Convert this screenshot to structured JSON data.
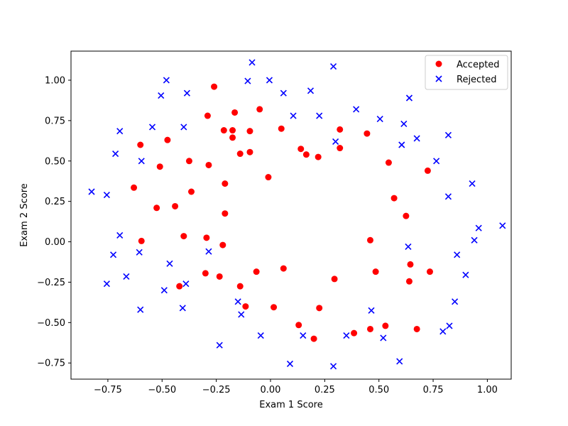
{
  "chart_data": {
    "type": "scatter",
    "xlabel": "Exam 1 Score",
    "ylabel": "Exam 2 Score",
    "xlim": [
      -0.92,
      1.11
    ],
    "ylim": [
      -0.85,
      1.18
    ],
    "xticks": [
      -0.75,
      -0.5,
      -0.25,
      0.0,
      0.25,
      0.5,
      0.75,
      1.0
    ],
    "xtick_labels": [
      "−0.75",
      "−0.50",
      "−0.25",
      "0.00",
      "0.25",
      "0.50",
      "0.75",
      "1.00"
    ],
    "yticks": [
      -0.75,
      -0.5,
      -0.25,
      0.0,
      0.25,
      0.5,
      0.75,
      1.0
    ],
    "ytick_labels": [
      "−0.75",
      "−0.50",
      "−0.25",
      "0.00",
      "0.25",
      "0.50",
      "0.75",
      "1.00"
    ],
    "grid": false,
    "legend_position": "upper-right",
    "series": [
      {
        "name": "Accepted",
        "marker": "circle",
        "color": "#ff0000",
        "points": [
          [
            -0.26,
            0.96
          ],
          [
            -0.29,
            0.78
          ],
          [
            -0.05,
            0.82
          ],
          [
            -0.165,
            0.8
          ],
          [
            -0.215,
            0.69
          ],
          [
            -0.175,
            0.69
          ],
          [
            -0.095,
            0.685
          ],
          [
            -0.175,
            0.645
          ],
          [
            -0.475,
            0.63
          ],
          [
            -0.6,
            0.6
          ],
          [
            -0.14,
            0.545
          ],
          [
            -0.095,
            0.555
          ],
          [
            -0.51,
            0.465
          ],
          [
            -0.375,
            0.5
          ],
          [
            -0.285,
            0.475
          ],
          [
            -0.21,
            0.36
          ],
          [
            -0.63,
            0.335
          ],
          [
            -0.365,
            0.31
          ],
          [
            -0.525,
            0.21
          ],
          [
            -0.44,
            0.22
          ],
          [
            -0.01,
            0.4
          ],
          [
            -0.21,
            0.175
          ],
          [
            -0.595,
            0.005
          ],
          [
            -0.4,
            0.035
          ],
          [
            -0.295,
            0.025
          ],
          [
            -0.22,
            -0.02
          ],
          [
            0.05,
            0.7
          ],
          [
            0.32,
            0.695
          ],
          [
            0.445,
            0.67
          ],
          [
            0.14,
            0.575
          ],
          [
            0.165,
            0.54
          ],
          [
            0.22,
            0.525
          ],
          [
            0.32,
            0.58
          ],
          [
            0.545,
            0.49
          ],
          [
            0.725,
            0.44
          ],
          [
            0.57,
            0.27
          ],
          [
            0.625,
            0.16
          ],
          [
            0.46,
            0.01
          ],
          [
            0.06,
            -0.165
          ],
          [
            -0.065,
            -0.185
          ],
          [
            -0.3,
            -0.195
          ],
          [
            -0.235,
            -0.215
          ],
          [
            -0.42,
            -0.275
          ],
          [
            -0.14,
            -0.275
          ],
          [
            -0.115,
            -0.4
          ],
          [
            0.015,
            -0.405
          ],
          [
            0.225,
            -0.41
          ],
          [
            0.295,
            -0.23
          ],
          [
            0.485,
            -0.185
          ],
          [
            0.645,
            -0.14
          ],
          [
            0.735,
            -0.185
          ],
          [
            0.64,
            -0.245
          ],
          [
            0.13,
            -0.515
          ],
          [
            0.2,
            -0.6
          ],
          [
            0.385,
            -0.565
          ],
          [
            0.46,
            -0.54
          ],
          [
            0.53,
            -0.52
          ],
          [
            0.675,
            -0.54
          ]
        ]
      },
      {
        "name": "Rejected",
        "marker": "x",
        "color": "#0000ff",
        "points": [
          [
            -0.085,
            1.11
          ],
          [
            0.29,
            1.085
          ],
          [
            -0.48,
            1.0
          ],
          [
            -0.105,
            0.995
          ],
          [
            -0.005,
            1.0
          ],
          [
            -0.385,
            0.92
          ],
          [
            -0.505,
            0.905
          ],
          [
            0.06,
            0.92
          ],
          [
            0.185,
            0.935
          ],
          [
            0.64,
            0.89
          ],
          [
            0.395,
            0.82
          ],
          [
            0.105,
            0.78
          ],
          [
            0.225,
            0.78
          ],
          [
            0.505,
            0.76
          ],
          [
            0.615,
            0.73
          ],
          [
            -0.695,
            0.685
          ],
          [
            -0.545,
            0.71
          ],
          [
            -0.4,
            0.71
          ],
          [
            0.82,
            0.66
          ],
          [
            0.675,
            0.64
          ],
          [
            0.605,
            0.6
          ],
          [
            0.3,
            0.62
          ],
          [
            -0.715,
            0.545
          ],
          [
            -0.595,
            0.5
          ],
          [
            0.765,
            0.5
          ],
          [
            0.93,
            0.36
          ],
          [
            -0.825,
            0.31
          ],
          [
            -0.755,
            0.29
          ],
          [
            0.82,
            0.28
          ],
          [
            -0.695,
            0.04
          ],
          [
            -0.605,
            -0.065
          ],
          [
            -0.725,
            -0.08
          ],
          [
            -0.285,
            -0.06
          ],
          [
            0.635,
            -0.03
          ],
          [
            0.94,
            0.01
          ],
          [
            0.96,
            0.085
          ],
          [
            1.07,
            0.1
          ],
          [
            0.86,
            -0.08
          ],
          [
            -0.665,
            -0.215
          ],
          [
            -0.755,
            -0.26
          ],
          [
            -0.465,
            -0.135
          ],
          [
            -0.39,
            -0.26
          ],
          [
            -0.49,
            -0.3
          ],
          [
            0.9,
            -0.205
          ],
          [
            -0.6,
            -0.42
          ],
          [
            -0.405,
            -0.41
          ],
          [
            -0.15,
            -0.37
          ],
          [
            -0.135,
            -0.45
          ],
          [
            0.465,
            -0.425
          ],
          [
            0.85,
            -0.37
          ],
          [
            0.825,
            -0.52
          ],
          [
            0.795,
            -0.555
          ],
          [
            -0.045,
            -0.58
          ],
          [
            0.15,
            -0.58
          ],
          [
            0.35,
            -0.58
          ],
          [
            0.52,
            -0.595
          ],
          [
            -0.235,
            -0.64
          ],
          [
            0.09,
            -0.755
          ],
          [
            0.29,
            -0.77
          ],
          [
            0.595,
            -0.74
          ]
        ]
      }
    ]
  }
}
